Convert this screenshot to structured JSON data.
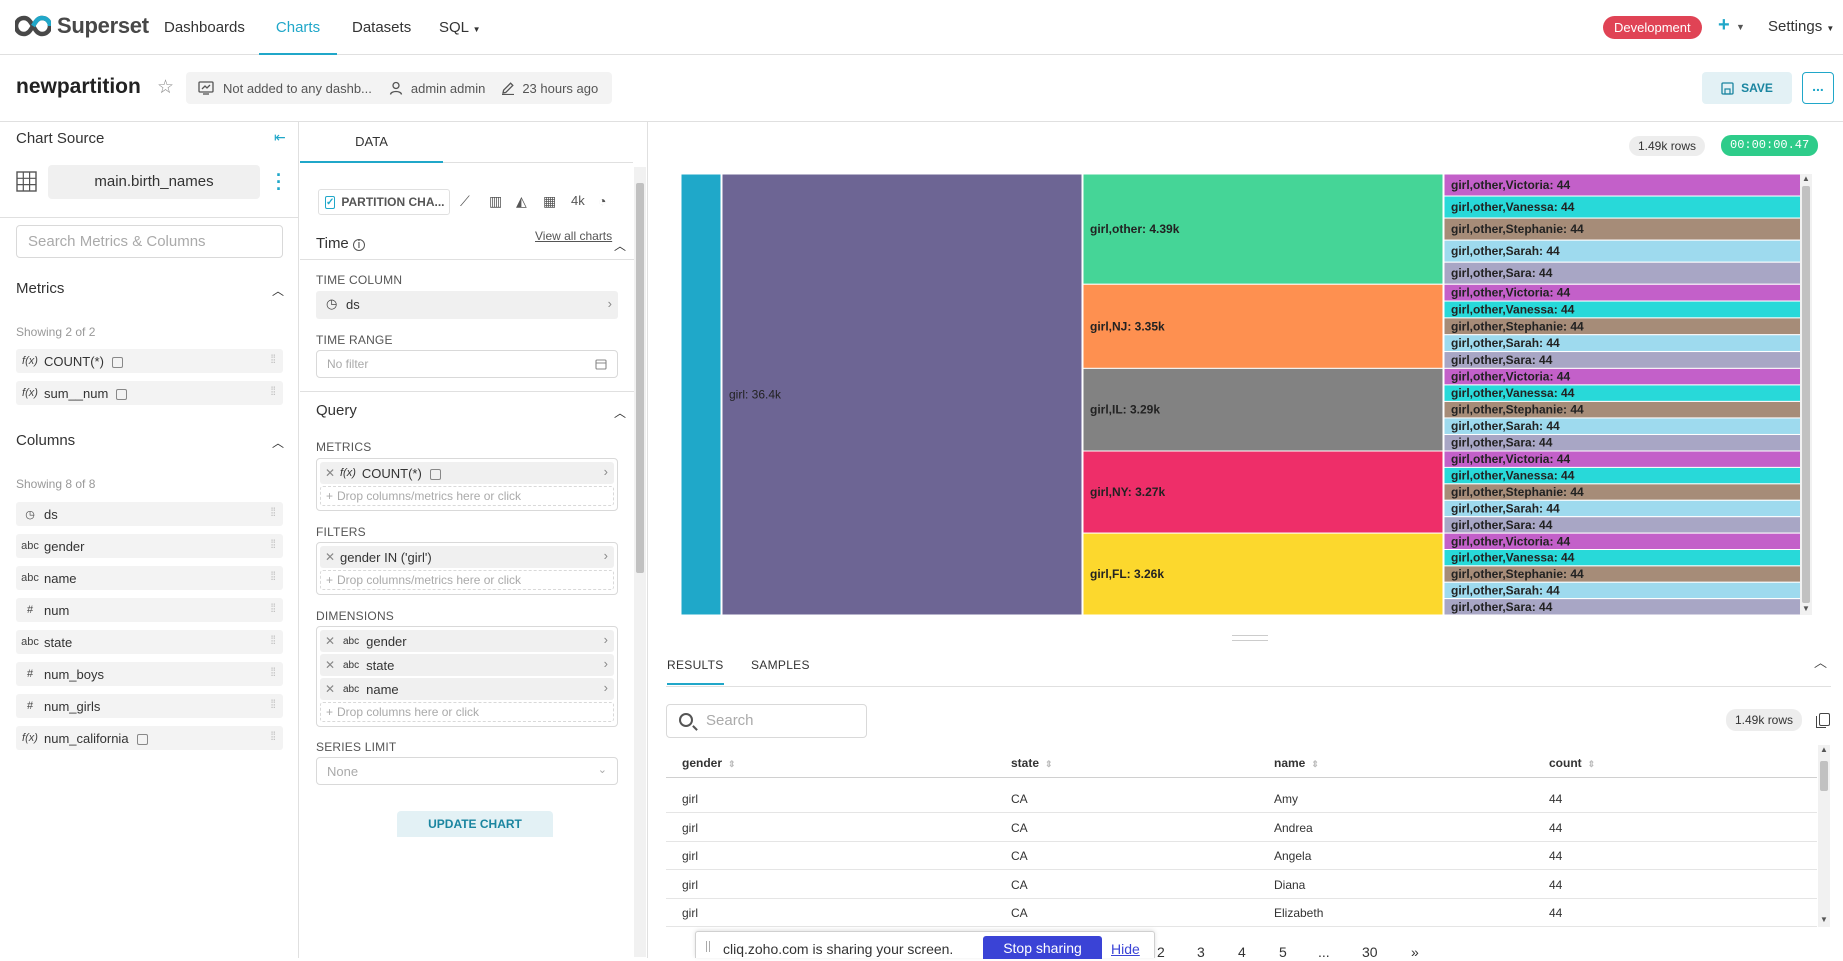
{
  "brand": {
    "name": "Superset"
  },
  "nav": {
    "items": [
      "Dashboards",
      "Charts",
      "Datasets",
      "SQL"
    ],
    "active": "Charts",
    "env_badge": "Development",
    "settings": "Settings"
  },
  "header": {
    "title": "newpartition",
    "dashboards": "Not added to any dashb...",
    "owner": "admin admin",
    "modified": "23 hours ago",
    "save_label": "SAVE",
    "more_label": "..."
  },
  "datasource": {
    "section_title": "Chart Source",
    "name": "main.birth_names",
    "search_placeholder": "Search Metrics & Columns",
    "metrics_title": "Metrics",
    "metrics_showing": "Showing 2 of 2",
    "metrics": [
      {
        "type": "f(x)",
        "name": "COUNT(*)"
      },
      {
        "type": "f(x)",
        "name": "sum__num"
      }
    ],
    "columns_title": "Columns",
    "columns_showing": "Showing 8 of 8",
    "columns": [
      {
        "type": "clock",
        "name": "ds"
      },
      {
        "type": "abc",
        "name": "gender"
      },
      {
        "type": "abc",
        "name": "name"
      },
      {
        "type": "#",
        "name": "num"
      },
      {
        "type": "abc",
        "name": "state"
      },
      {
        "type": "#",
        "name": "num_boys"
      },
      {
        "type": "#",
        "name": "num_girls"
      },
      {
        "type": "f(x)",
        "name": "num_california"
      }
    ]
  },
  "controls": {
    "tab": "DATA",
    "viz_name": "PARTITION CHA...",
    "viz_4k": "4k",
    "view_all": "View all charts",
    "time_section": "Time",
    "time_column_label": "TIME COLUMN",
    "time_column_value": "ds",
    "time_range_label": "TIME RANGE",
    "time_range_value": "No filter",
    "query_section": "Query",
    "metrics_label": "METRICS",
    "metrics_value": "COUNT(*)",
    "drop_metrics": "Drop columns/metrics here or click",
    "filters_label": "FILTERS",
    "filters_value": "gender IN ('girl')",
    "drop_filters": "Drop columns/metrics here or click",
    "dimensions_label": "DIMENSIONS",
    "dimensions": [
      "gender",
      "state",
      "name"
    ],
    "dim_type": "abc",
    "drop_columns": "Drop columns here or click",
    "series_limit_label": "SERIES LIMIT",
    "series_limit_value": "None",
    "update_button": "UPDATE CHART"
  },
  "chart_panel": {
    "rows": "1.49k rows",
    "elapsed": "00:00:00.47"
  },
  "chart_data": {
    "type": "partition",
    "levels": [
      "root",
      "gender",
      "state",
      "name"
    ],
    "colors": {
      "root": "#1fa8c9",
      "girl": "#6d6594",
      "other": "#45d597",
      "NJ": "#fe9050",
      "IL": "#828282",
      "NY": "#ee2e69",
      "FL": "#fcd82d",
      "Victoria": "#c360c9",
      "Vanessa": "#28d9d9",
      "Stephanie": "#a68c78",
      "Sarah": "#9edaee",
      "Sara": "#a8a6c5"
    },
    "gender": [
      {
        "label": "girl: 36.4k",
        "value": 36400
      }
    ],
    "states": [
      {
        "key": "other",
        "label": "girl,other: 4.39k",
        "value": 4390
      },
      {
        "key": "NJ",
        "label": "girl,NJ: 3.35k",
        "value": 3350
      },
      {
        "key": "IL",
        "label": "girl,IL: 3.29k",
        "value": 3290
      },
      {
        "key": "NY",
        "label": "girl,NY: 3.27k",
        "value": 3270
      },
      {
        "key": "FL",
        "label": "girl,FL: 3.26k",
        "value": 3260
      }
    ],
    "leaves": [
      {
        "key": "Victoria",
        "label": "girl,other,Victoria: 44",
        "value": 44
      },
      {
        "key": "Vanessa",
        "label": "girl,other,Vanessa: 44",
        "value": 44
      },
      {
        "key": "Stephanie",
        "label": "girl,other,Stephanie: 44",
        "value": 44
      },
      {
        "key": "Sarah",
        "label": "girl,other,Sarah: 44",
        "value": 44
      },
      {
        "key": "Sara",
        "label": "girl,other,Sara: 44",
        "value": 44
      }
    ]
  },
  "results": {
    "tabs": [
      "RESULTS",
      "SAMPLES"
    ],
    "search_placeholder": "Search",
    "rows": "1.49k rows",
    "columns": [
      "gender",
      "state",
      "name",
      "count"
    ],
    "data": [
      [
        "girl",
        "CA",
        "Amy",
        "44"
      ],
      [
        "girl",
        "CA",
        "Andrea",
        "44"
      ],
      [
        "girl",
        "CA",
        "Angela",
        "44"
      ],
      [
        "girl",
        "CA",
        "Diana",
        "44"
      ],
      [
        "girl",
        "CA",
        "Elizabeth",
        "44"
      ]
    ],
    "pages": [
      "2",
      "3",
      "4",
      "5",
      "...",
      "30",
      "»"
    ]
  },
  "share_banner": {
    "text": "cliq.zoho.com is sharing your screen.",
    "stop": "Stop sharing",
    "hide": "Hide"
  }
}
